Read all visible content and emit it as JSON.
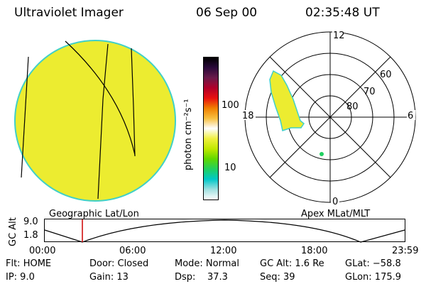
{
  "header": {
    "instrument": "Ultraviolet Imager",
    "date": "06 Sep 00",
    "time": "02:35:48 UT"
  },
  "geo_panel": {
    "label": "Geographic Lat/Lon"
  },
  "colorbar": {
    "unit_label": "photon cm⁻²s⁻¹",
    "tick_labels": [
      "100",
      "10"
    ],
    "colors": [
      "#000000",
      "#2a0a3a",
      "#6a1a4a",
      "#b0002a",
      "#e81010",
      "#f08000",
      "#f8c040",
      "#ffffff",
      "#f0f040",
      "#c0e800",
      "#60d800",
      "#20d060",
      "#00c8c8",
      "#a0e0e0",
      "#ffffff"
    ]
  },
  "polar_panel": {
    "label": "Apex MLat/MLT",
    "mlt_labels": {
      "top": "12",
      "left": "18",
      "right": "6",
      "bottom": "0"
    },
    "mlat_labels": [
      "60",
      "70",
      "80"
    ]
  },
  "timeline": {
    "y_label": "GC Alt",
    "y_ticks": [
      "9.0",
      "1.8"
    ],
    "x_ticks": [
      "00:00",
      "06:00",
      "12:00",
      "18:00",
      "23:59"
    ],
    "marker_color": "#cc0000"
  },
  "footer": {
    "row1": {
      "flt": "Flt: HOME",
      "door": "Door: Closed",
      "mode": "Mode: Normal",
      "gcalt": "GC Alt: 1.6 Re",
      "glat": "GLat: −58.8"
    },
    "row2": {
      "ip": "IP:  9.0",
      "gain": "Gain: 13",
      "dsp": "Dsp:    37.3",
      "seq": "Seq: 39",
      "glon": "GLon: 175.9"
    }
  },
  "colors": {
    "fill_yellow": "#ecec30",
    "rim_cyan": "#40d0c8",
    "aurora_yellow": "#ecec30"
  }
}
